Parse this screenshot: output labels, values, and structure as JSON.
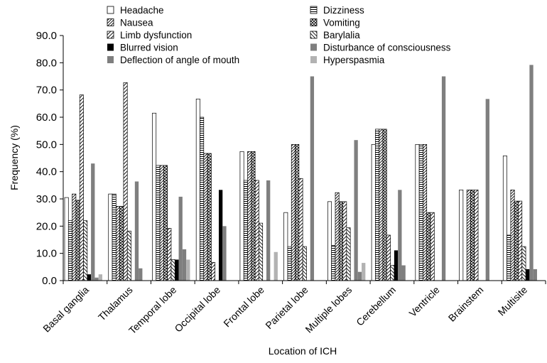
{
  "chart_data": {
    "type": "bar",
    "xlabel": "Location of ICH",
    "ylabel": "Frequency (%)",
    "ylim": [
      0,
      90
    ],
    "yticks": [
      "0.0",
      "10.0",
      "20.0",
      "30.0",
      "40.0",
      "50.0",
      "60.0",
      "70.0",
      "80.0",
      "90.0"
    ],
    "grid": false,
    "legend_position": "top",
    "categories": [
      "Basal ganglia",
      "Thalamus",
      "Temporal lobe",
      "Occipital lobe",
      "Frontal lobe",
      "Parietal lobe",
      "Multiple lobes",
      "Cerebellum",
      "Ventricle",
      "Brainstem",
      "Multisite"
    ],
    "series": [
      {
        "name": "Headache",
        "values": [
          30.5,
          31.8,
          61.5,
          66.7,
          47.4,
          25.0,
          29.0,
          50.0,
          50.0,
          33.3,
          45.8
        ]
      },
      {
        "name": "Dizziness",
        "values": [
          22.0,
          31.8,
          42.3,
          60.0,
          36.8,
          12.5,
          12.9,
          55.6,
          50.0,
          0,
          16.7
        ]
      },
      {
        "name": "Nausea",
        "values": [
          31.8,
          27.3,
          42.3,
          46.7,
          47.4,
          50.0,
          32.3,
          55.6,
          50.0,
          33.3,
          33.3
        ]
      },
      {
        "name": "Vomiting",
        "values": [
          29.5,
          27.3,
          42.3,
          46.7,
          47.4,
          50.0,
          29.0,
          55.6,
          25.0,
          33.3,
          29.2
        ]
      },
      {
        "name": "Limb dysfunction",
        "values": [
          68.2,
          72.7,
          19.2,
          6.7,
          36.8,
          37.5,
          29.0,
          16.7,
          25.0,
          33.3,
          29.2
        ]
      },
      {
        "name": "Barylalia",
        "values": [
          22.0,
          18.2,
          7.7,
          0,
          21.1,
          12.5,
          19.4,
          5.6,
          0,
          0,
          12.5
        ]
      },
      {
        "name": "Blurred vision",
        "values": [
          2.3,
          0,
          7.7,
          33.3,
          0,
          0,
          0,
          11.1,
          0,
          0,
          4.2
        ]
      },
      {
        "name": "Disturbance of consciousness",
        "values": [
          43.0,
          36.4,
          30.8,
          20.0,
          36.8,
          75.0,
          51.6,
          33.3,
          75.0,
          66.7,
          79.2
        ]
      },
      {
        "name": "Deflection of angle of mouth",
        "values": [
          1.1,
          4.5,
          11.5,
          0,
          0,
          0,
          3.2,
          5.6,
          0,
          0,
          4.2
        ]
      },
      {
        "name": "Hyperspasmia",
        "values": [
          2.3,
          0,
          7.7,
          0,
          10.5,
          0,
          6.5,
          0,
          0,
          0,
          0
        ]
      }
    ],
    "series_styles": [
      {
        "fill": "white",
        "pattern": "none"
      },
      {
        "fill": "hlines",
        "pattern": "horizontal-lines"
      },
      {
        "fill": "diag-fwd",
        "pattern": "forward-diagonal"
      },
      {
        "fill": "diag-cross",
        "pattern": "diagonal-cross"
      },
      {
        "fill": "diag-fwd-wide",
        "pattern": "forward-diagonal-wide"
      },
      {
        "fill": "diag-back",
        "pattern": "back-diagonal"
      },
      {
        "fill": "#000000",
        "pattern": "solid-black"
      },
      {
        "fill": "#7f7f7f",
        "pattern": "solid-dark-gray"
      },
      {
        "fill": "#7f7f7f",
        "pattern": "solid-dark-gray"
      },
      {
        "fill": "#b2b2b2",
        "pattern": "solid-light-gray"
      }
    ]
  }
}
